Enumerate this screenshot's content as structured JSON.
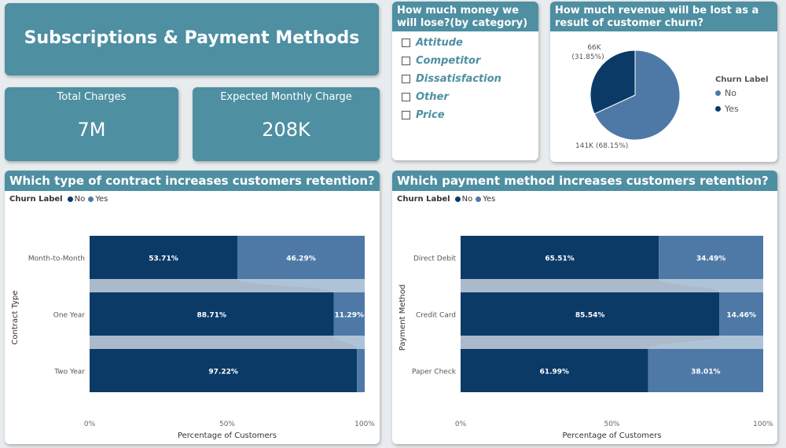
{
  "title": "Subscriptions & Payment Methods",
  "kpis": {
    "total_charges": {
      "label": "Total Charges",
      "value": "7M"
    },
    "expected_monthly": {
      "label": "Expected Monthly Charge",
      "value": "208K"
    }
  },
  "slicer": {
    "title": "How much money we will lose?(by category)",
    "items": [
      "Attitude",
      "Competitor",
      "Dissatisfaction",
      "Other",
      "Price"
    ]
  },
  "colors": {
    "no": "#0b3a67",
    "yes": "#4e79a7",
    "header": "#4e8fa2"
  },
  "chart_data": [
    {
      "type": "pie",
      "title": "How much revenue will be lost as a result of customer churn?",
      "legend_title": "Churn Label",
      "legend_position": "right",
      "slices": [
        {
          "name": "No",
          "value": 141,
          "label": "141K (68.15%)"
        },
        {
          "name": "Yes",
          "value": 66,
          "label": "66K (31.85%)"
        }
      ]
    },
    {
      "type": "bar",
      "stacked": true,
      "title": "Which type of contract increases customers retention?",
      "legend_title": "Churn Label",
      "ylabel": "Contract Type",
      "xlabel": "Percentage of Customers",
      "x_ticks": [
        "0%",
        "50%",
        "100%"
      ],
      "categories": [
        "Month-to-Month",
        "One Year",
        "Two Year"
      ],
      "series": [
        {
          "name": "No",
          "values": [
            53.71,
            88.71,
            97.22
          ],
          "labels": [
            "53.71%",
            "88.71%",
            "97.22%"
          ]
        },
        {
          "name": "Yes",
          "values": [
            46.29,
            11.29,
            2.78
          ],
          "labels": [
            "46.29%",
            "11.29%",
            ""
          ]
        }
      ]
    },
    {
      "type": "bar",
      "stacked": true,
      "title": "Which payment method increases customers retention?",
      "legend_title": "Churn Label",
      "ylabel": "Payment Method",
      "xlabel": "Percentage of Customers",
      "x_ticks": [
        "0%",
        "50%",
        "100%"
      ],
      "categories": [
        "Direct Debit",
        "Credit Card",
        "Paper Check"
      ],
      "series": [
        {
          "name": "No",
          "values": [
            65.51,
            85.54,
            61.99
          ],
          "labels": [
            "65.51%",
            "85.54%",
            "61.99%"
          ]
        },
        {
          "name": "Yes",
          "values": [
            34.49,
            14.46,
            38.01
          ],
          "labels": [
            "34.49%",
            "14.46%",
            "38.01%"
          ]
        }
      ]
    }
  ]
}
